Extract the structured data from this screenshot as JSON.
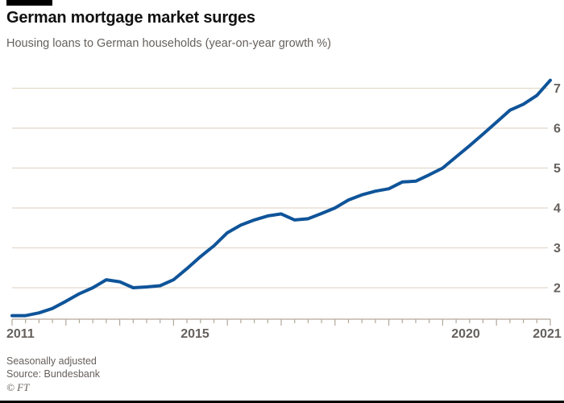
{
  "header": {
    "title": "German mortgage market surges",
    "subtitle": "Housing loans to German households (year-on-year growth %)"
  },
  "footer": {
    "note": "Seasonally adjusted",
    "source": "Source: Bundesbank",
    "credit": "© FT"
  },
  "colors": {
    "line": "#0f5499",
    "grid": "#e4d8cb",
    "axis": "#b3a89b",
    "tick_label": "#66605c",
    "accent": "#000000",
    "background": "#ffffff"
  },
  "chart_data": {
    "type": "line",
    "title": "German mortgage market surges",
    "subtitle": "Housing loans to German households (year-on-year growth %)",
    "series_name": "Housing loans to German households, year-on-year growth %",
    "frequency": "quarterly",
    "periods": [
      "2011 Q1",
      "2011 Q2",
      "2011 Q3",
      "2011 Q4",
      "2012 Q1",
      "2012 Q2",
      "2012 Q3",
      "2012 Q4",
      "2013 Q1",
      "2013 Q2",
      "2013 Q3",
      "2013 Q4",
      "2014 Q1",
      "2014 Q2",
      "2014 Q3",
      "2014 Q4",
      "2015 Q1",
      "2015 Q2",
      "2015 Q3",
      "2015 Q4",
      "2016 Q1",
      "2016 Q2",
      "2016 Q3",
      "2016 Q4",
      "2017 Q1",
      "2017 Q2",
      "2017 Q3",
      "2017 Q4",
      "2018 Q1",
      "2018 Q2",
      "2018 Q3",
      "2018 Q4",
      "2019 Q1",
      "2019 Q2",
      "2019 Q3",
      "2019 Q4",
      "2020 Q1",
      "2020 Q2",
      "2020 Q3",
      "2020 Q4",
      "2021 Q1"
    ],
    "values": [
      1.3,
      1.3,
      1.37,
      1.48,
      1.66,
      1.85,
      2.0,
      2.2,
      2.15,
      2.0,
      2.02,
      2.05,
      2.2,
      2.48,
      2.78,
      3.05,
      3.38,
      3.57,
      3.7,
      3.8,
      3.85,
      3.7,
      3.73,
      3.86,
      4.0,
      4.2,
      4.33,
      4.42,
      4.48,
      4.65,
      4.67,
      4.83,
      5.0,
      5.28,
      5.56,
      5.85,
      6.15,
      6.45,
      6.6,
      6.82,
      7.2
    ],
    "xlim": [
      2011,
      2021
    ],
    "ylim": [
      1.2,
      7.5
    ],
    "xticks": [
      "2011",
      "2015",
      "2020",
      "2021"
    ],
    "yticks": [
      2,
      3,
      4,
      5,
      6,
      7
    ],
    "ytick_side": "right",
    "grid": "horizontal",
    "legend": "none",
    "xlabel": "",
    "ylabel": "year-on-year growth %"
  }
}
